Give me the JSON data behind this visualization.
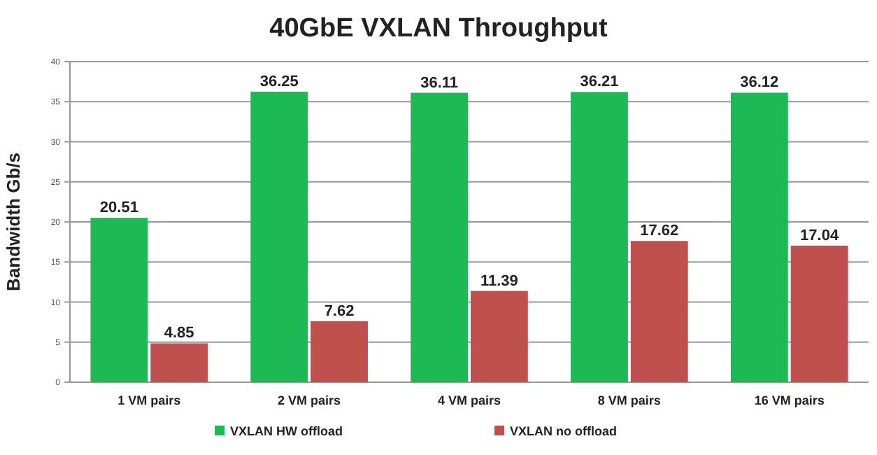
{
  "chart_data": {
    "type": "bar",
    "title": "40GbE VXLAN  Throughput",
    "ylabel": "Bandwidth Gb/s",
    "categories": [
      "1 VM pairs",
      "2 VM pairs",
      "4 VM pairs",
      "8 VM pairs",
      "16 VM pairs"
    ],
    "series": [
      {
        "name": "VXLAN HW offload",
        "color": "#1db954",
        "values": [
          20.51,
          36.25,
          36.11,
          36.21,
          36.12
        ]
      },
      {
        "name": "VXLAN no offload",
        "color": "#c0504d",
        "values": [
          4.85,
          7.62,
          11.39,
          17.62,
          17.04
        ]
      }
    ],
    "ylim": [
      0,
      40
    ],
    "yticks": [
      0,
      5,
      10,
      15,
      20,
      25,
      30,
      35,
      40
    ],
    "grid": "y",
    "legend": "bottom",
    "data_labels": true
  }
}
